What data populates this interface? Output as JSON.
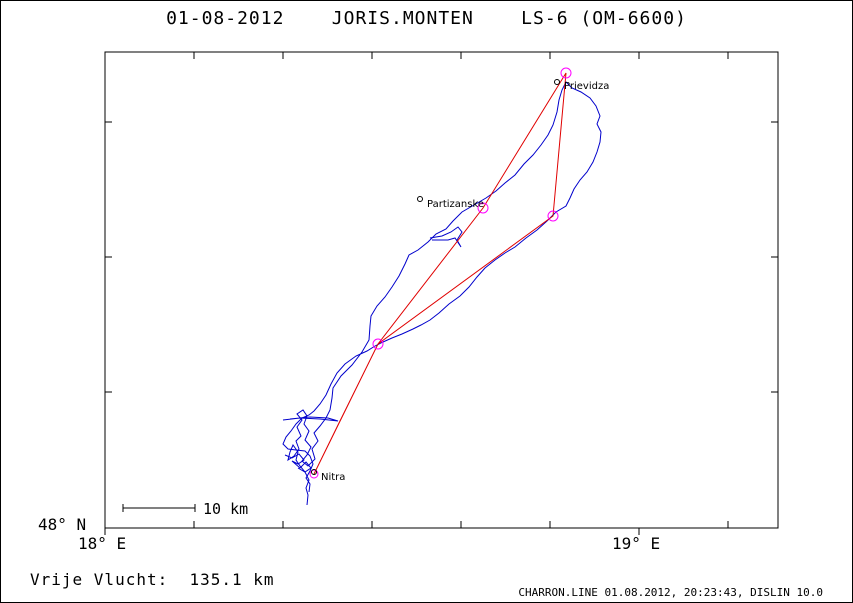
{
  "title": "01-08-2012    JORIS.MONTEN    LS-6 (OM-6600)",
  "footer": {
    "distance_label": "Vrije Vlucht:",
    "distance_value": "135.1 km",
    "credit": "CHARRON.LINE 01.08.2012, 20:23:43, DISLIN 10.0"
  },
  "axes": {
    "y_corner_label": "48° N",
    "x_labels": [
      "18° E",
      "19° E"
    ],
    "scale_bar_label": "10 km"
  },
  "places": [
    {
      "name": "Prievidza"
    },
    {
      "name": "Partizanske"
    },
    {
      "name": "Nitra"
    }
  ],
  "colors": {
    "track": "#0000cc",
    "task_line": "#e00000",
    "turnpoint": "#ff00ff",
    "frame": "#000000"
  }
}
